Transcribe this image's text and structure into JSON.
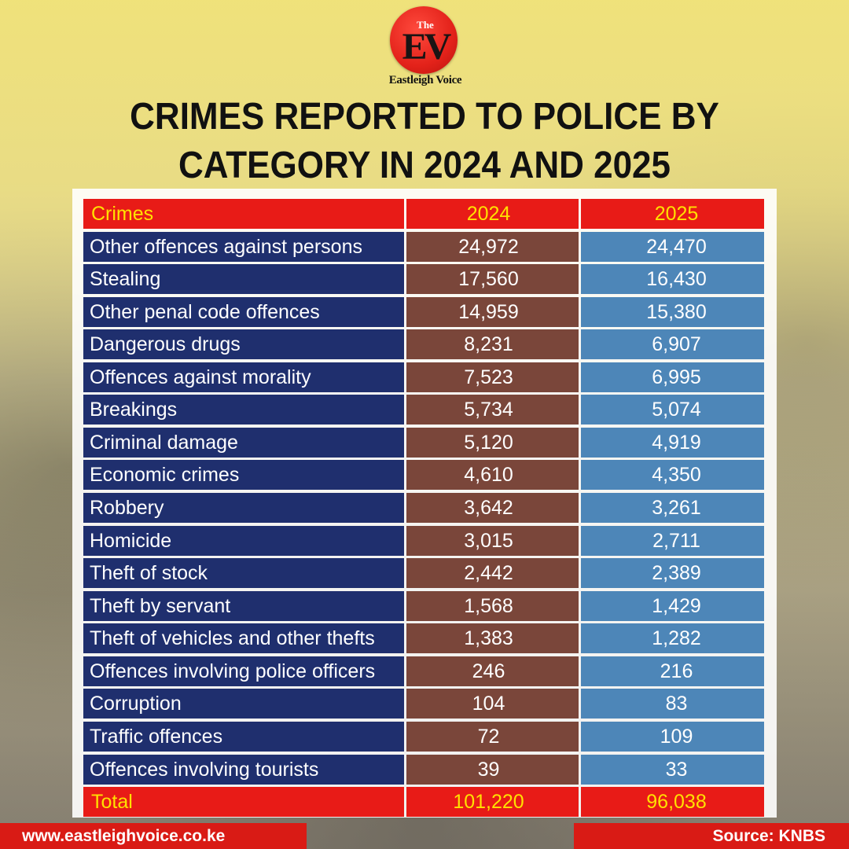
{
  "logo": {
    "the": "The",
    "ev": "EV",
    "name": "Eastleigh Voice"
  },
  "title": {
    "line1": "CRIMES REPORTED TO POLICE BY",
    "line2": "CATEGORY IN 2024 AND 2025"
  },
  "colors": {
    "header_total_bg": "#e81b17",
    "header_total_text": "#ffe100",
    "category_bg": "#1f2f6e",
    "col_2024_bg": "#7a463a",
    "col_2025_bg": "#4d86b8",
    "footer_bg": "#d91b15"
  },
  "chart_data": {
    "type": "table",
    "title": "CRIMES REPORTED TO POLICE BY CATEGORY IN 2024 AND 2025",
    "columns": [
      "Crimes",
      "2024",
      "2025"
    ],
    "rows": [
      [
        "Other offences against persons",
        "24,972",
        "24,470"
      ],
      [
        "Stealing",
        "17,560",
        "16,430"
      ],
      [
        "Other penal code offences",
        "14,959",
        "15,380"
      ],
      [
        "Dangerous drugs",
        "8,231",
        "6,907"
      ],
      [
        "Offences against morality",
        "7,523",
        "6,995"
      ],
      [
        "Breakings",
        "5,734",
        "5,074"
      ],
      [
        "Criminal damage",
        "5,120",
        "4,919"
      ],
      [
        "Economic crimes",
        "4,610",
        "4,350"
      ],
      [
        "Robbery",
        "3,642",
        "3,261"
      ],
      [
        "Homicide",
        "3,015",
        "2,711"
      ],
      [
        "Theft of stock",
        "2,442",
        "2,389"
      ],
      [
        "Theft by servant",
        "1,568",
        "1,429"
      ],
      [
        "Theft of vehicles and other thefts",
        "1,383",
        "1,282"
      ],
      [
        "Offences involving police officers",
        "246",
        "216"
      ],
      [
        "Corruption",
        "104",
        "83"
      ],
      [
        "Traffic offences",
        "72",
        "109"
      ],
      [
        "Offences involving tourists",
        "39",
        "33"
      ]
    ],
    "total": [
      "Total",
      "101,220",
      "96,038"
    ]
  },
  "footer": {
    "website": "www.eastleighvoice.co.ke",
    "source": "Source: KNBS"
  }
}
